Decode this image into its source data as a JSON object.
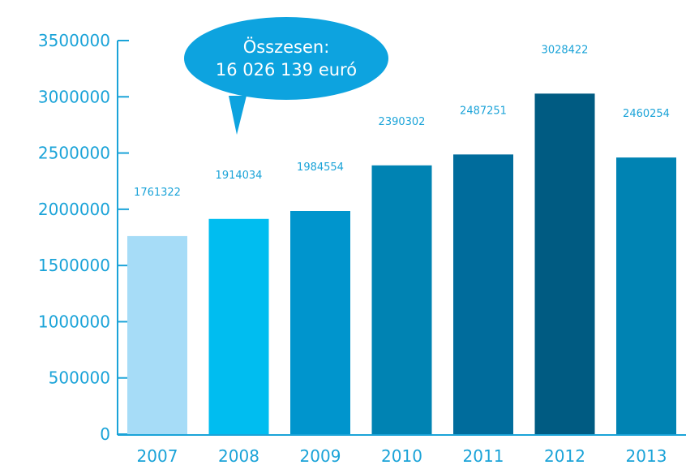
{
  "chart_data": {
    "type": "bar",
    "categories": [
      "2007",
      "2008",
      "2009",
      "2010",
      "2011",
      "2012",
      "2013"
    ],
    "values": [
      1761322,
      1914034,
      1984554,
      2390302,
      2487251,
      3028422,
      2460254
    ],
    "data_labels": [
      "1761322",
      "1914034",
      "1984554",
      "2390302",
      "2487251",
      "3028422",
      "2460254"
    ],
    "y_ticks": [
      "0",
      "500000",
      "1000000",
      "1500000",
      "2000000",
      "2500000",
      "3000000",
      "3500000"
    ],
    "ylim": [
      0,
      3500000
    ],
    "grid": false,
    "bar_colors": [
      "#a6dcf7",
      "#00bdf0",
      "#0095cd",
      "#0083b3",
      "#006c9c",
      "#005b82",
      "#0083b3"
    ],
    "axis_color": "#1aa3d8"
  },
  "callout": {
    "line1": "Összesen:",
    "line2": "16 026 139 euró",
    "color": "#0da3df"
  }
}
